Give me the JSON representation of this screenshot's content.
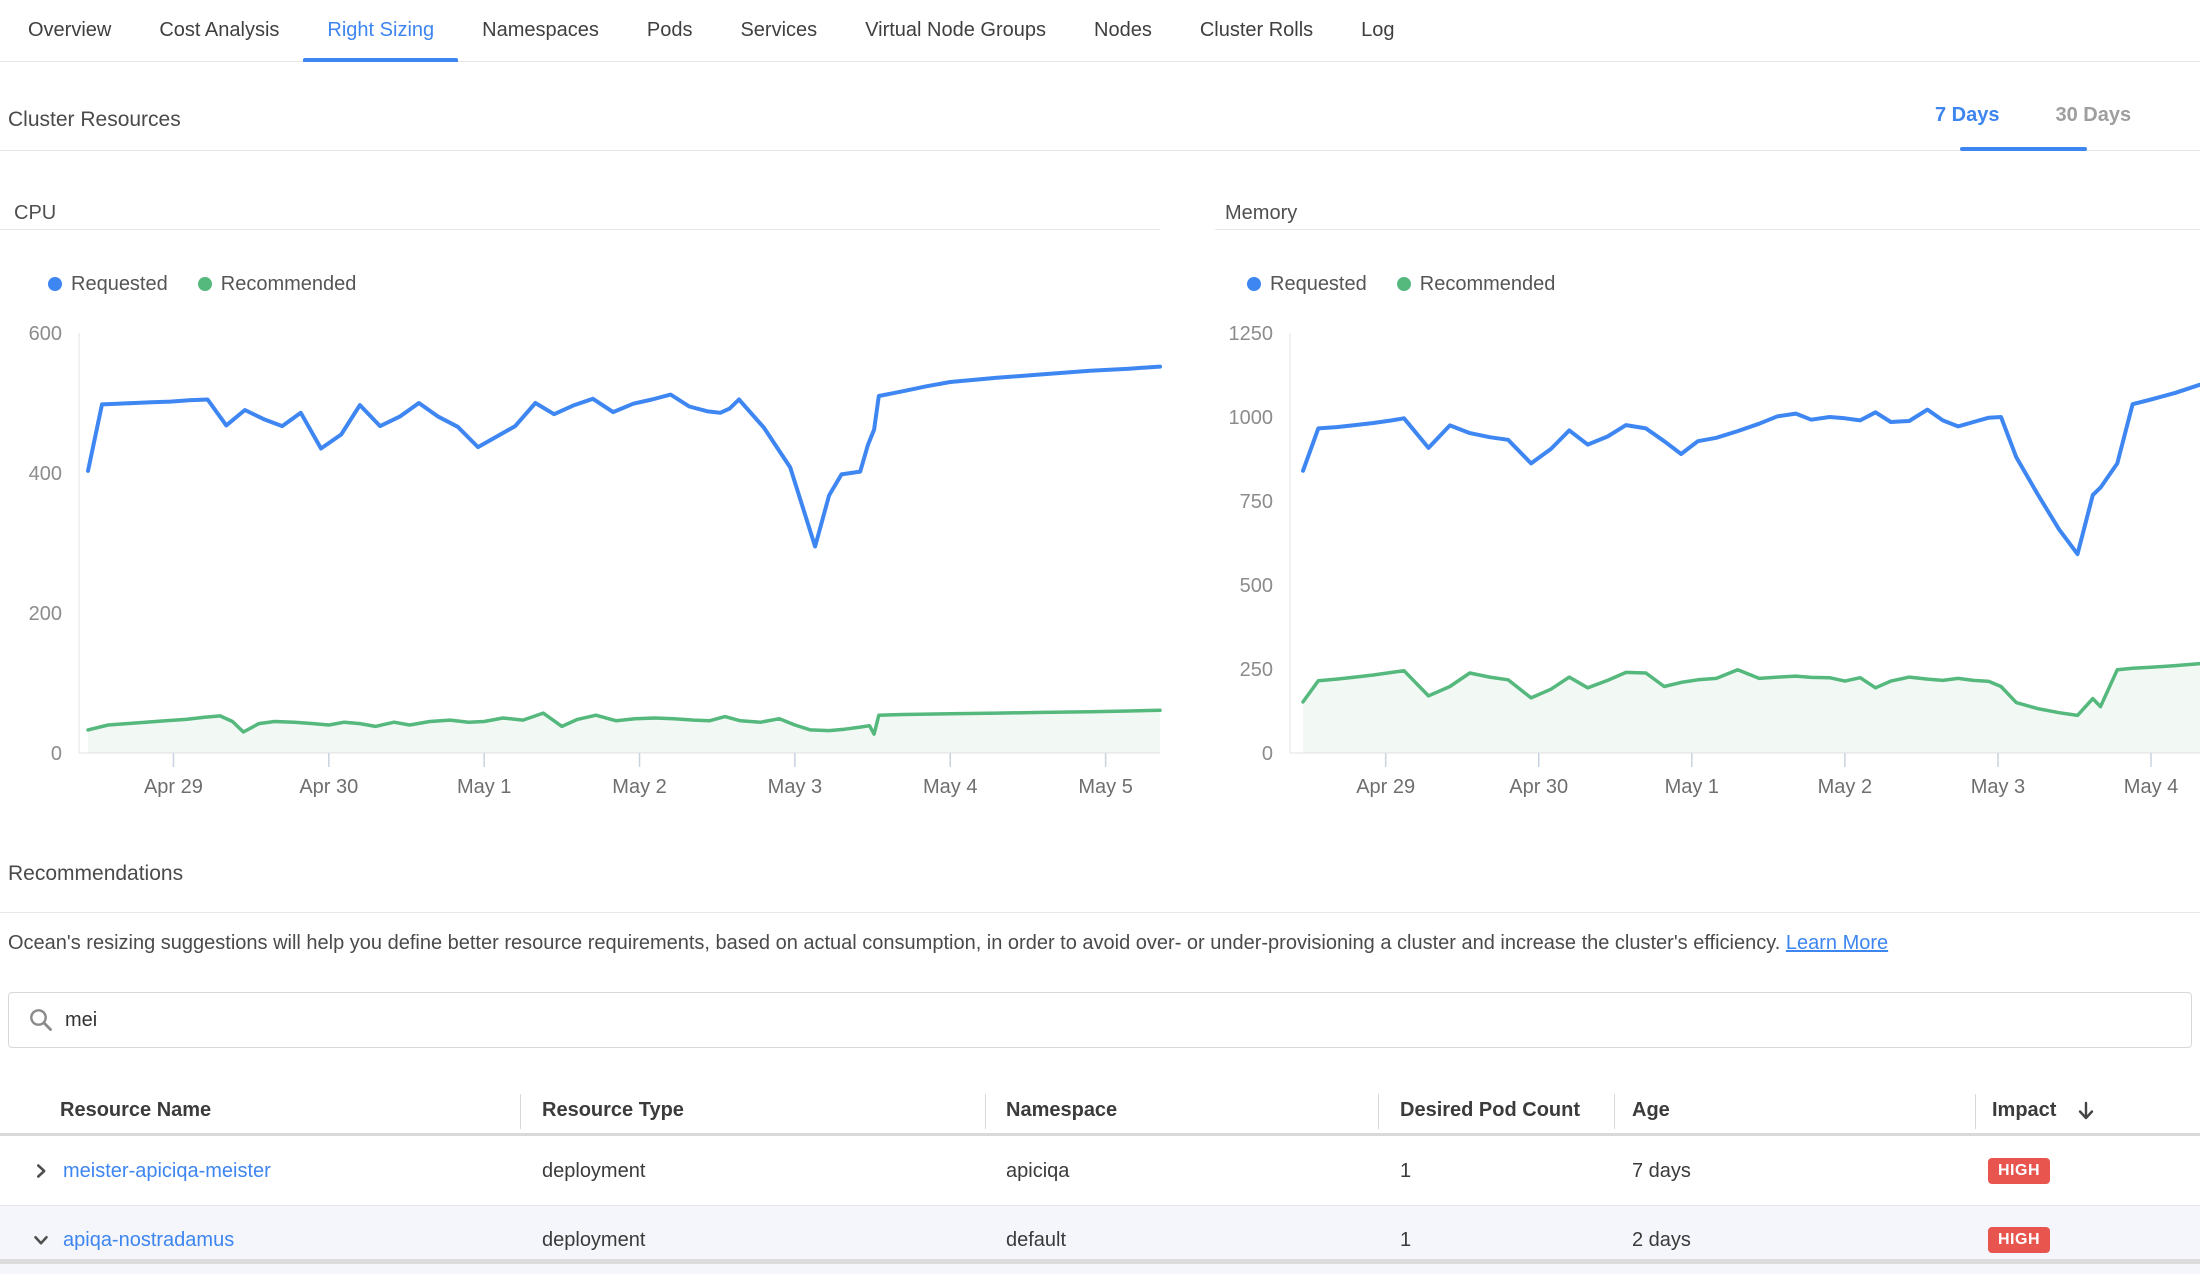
{
  "tabs": {
    "items": [
      "Overview",
      "Cost Analysis",
      "Right Sizing",
      "Namespaces",
      "Pods",
      "Services",
      "Virtual Node Groups",
      "Nodes",
      "Cluster Rolls",
      "Log"
    ],
    "active": "Right Sizing"
  },
  "cluster_resources": {
    "title": "Cluster Resources",
    "period_options": [
      {
        "label": "7 Days",
        "active": true
      },
      {
        "label": "30 Days",
        "active": false
      }
    ]
  },
  "chart_data": [
    {
      "type": "line",
      "title": "CPU",
      "legend_position": "top-left",
      "grid": false,
      "ylim": [
        0,
        600
      ],
      "y_ticks": [
        0,
        200,
        400,
        600
      ],
      "x_range": [
        -0.55,
        6.35
      ],
      "x_ticks": [
        {
          "label": "Apr 29",
          "x": 0
        },
        {
          "label": "Apr 30",
          "x": 1
        },
        {
          "label": "May 1",
          "x": 2
        },
        {
          "label": "May 2",
          "x": 3
        },
        {
          "label": "May 3",
          "x": 4
        },
        {
          "label": "May 4",
          "x": 5
        },
        {
          "label": "May 5",
          "x": 6
        }
      ],
      "series": [
        {
          "name": "Requested",
          "color": "#3e86f2",
          "fill": false,
          "points": [
            [
              -0.55,
              403
            ],
            [
              -0.46,
              498
            ],
            [
              -0.36,
              499
            ],
            [
              -0.25,
              500
            ],
            [
              -0.14,
              501
            ],
            [
              -0.02,
              502
            ],
            [
              0.1,
              504
            ],
            [
              0.22,
              505
            ],
            [
              0.34,
              468
            ],
            [
              0.46,
              490
            ],
            [
              0.58,
              477
            ],
            [
              0.7,
              467
            ],
            [
              0.82,
              486
            ],
            [
              0.95,
              435
            ],
            [
              1.08,
              455
            ],
            [
              1.2,
              497
            ],
            [
              1.33,
              467
            ],
            [
              1.46,
              481
            ],
            [
              1.58,
              500
            ],
            [
              1.7,
              481
            ],
            [
              1.83,
              466
            ],
            [
              1.96,
              437
            ],
            [
              2.08,
              452
            ],
            [
              2.2,
              467
            ],
            [
              2.33,
              500
            ],
            [
              2.45,
              484
            ],
            [
              2.58,
              497
            ],
            [
              2.7,
              506
            ],
            [
              2.83,
              487
            ],
            [
              2.96,
              499
            ],
            [
              3.08,
              505
            ],
            [
              3.2,
              512
            ],
            [
              3.32,
              495
            ],
            [
              3.44,
              488
            ],
            [
              3.52,
              486
            ],
            [
              3.58,
              492
            ],
            [
              3.64,
              505
            ],
            [
              3.8,
              465
            ],
            [
              3.97,
              408
            ],
            [
              4.13,
              295
            ],
            [
              4.22,
              368
            ],
            [
              4.3,
              398
            ],
            [
              4.36,
              400
            ],
            [
              4.42,
              402
            ],
            [
              4.47,
              440
            ],
            [
              4.51,
              462
            ],
            [
              4.54,
              510
            ],
            [
              4.7,
              517
            ],
            [
              4.85,
              524
            ],
            [
              5.0,
              530
            ],
            [
              5.3,
              536
            ],
            [
              5.6,
              541
            ],
            [
              5.9,
              546
            ],
            [
              6.15,
              549
            ],
            [
              6.35,
              552
            ]
          ]
        },
        {
          "name": "Recommended",
          "color": "#55b87d",
          "fill": true,
          "fill_color": "rgba(85,184,125,0.08)",
          "points": [
            [
              -0.55,
              33
            ],
            [
              -0.42,
              40
            ],
            [
              -0.3,
              42
            ],
            [
              -0.18,
              44
            ],
            [
              -0.05,
              46
            ],
            [
              0.08,
              48
            ],
            [
              0.2,
              51
            ],
            [
              0.3,
              53
            ],
            [
              0.38,
              45
            ],
            [
              0.45,
              30
            ],
            [
              0.55,
              42
            ],
            [
              0.65,
              45
            ],
            [
              0.78,
              44
            ],
            [
              0.9,
              42
            ],
            [
              1.0,
              40
            ],
            [
              1.1,
              44
            ],
            [
              1.2,
              42
            ],
            [
              1.3,
              38
            ],
            [
              1.42,
              44
            ],
            [
              1.52,
              40
            ],
            [
              1.65,
              45
            ],
            [
              1.78,
              47
            ],
            [
              1.9,
              44
            ],
            [
              2.0,
              45
            ],
            [
              2.12,
              50
            ],
            [
              2.25,
              47
            ],
            [
              2.38,
              57
            ],
            [
              2.5,
              38
            ],
            [
              2.6,
              48
            ],
            [
              2.72,
              54
            ],
            [
              2.85,
              46
            ],
            [
              2.97,
              49
            ],
            [
              3.1,
              50
            ],
            [
              3.22,
              49
            ],
            [
              3.35,
              47
            ],
            [
              3.45,
              46
            ],
            [
              3.55,
              52
            ],
            [
              3.65,
              46
            ],
            [
              3.78,
              44
            ],
            [
              3.9,
              49
            ],
            [
              4.0,
              40
            ],
            [
              4.1,
              33
            ],
            [
              4.22,
              32
            ],
            [
              4.32,
              34
            ],
            [
              4.42,
              37
            ],
            [
              4.48,
              39
            ],
            [
              4.51,
              27
            ],
            [
              4.54,
              54
            ],
            [
              4.7,
              55
            ],
            [
              5.0,
              56
            ],
            [
              5.3,
              57
            ],
            [
              5.6,
              58
            ],
            [
              5.9,
              59
            ],
            [
              6.15,
              60
            ],
            [
              6.35,
              61
            ]
          ]
        }
      ]
    },
    {
      "type": "line",
      "title": "Memory",
      "legend_position": "top-left",
      "grid": false,
      "ylim": [
        0,
        1250
      ],
      "y_ticks": [
        0,
        250,
        500,
        750,
        1000,
        1250
      ],
      "x_range": [
        -0.54,
        5.32
      ],
      "x_ticks": [
        {
          "label": "Apr 29",
          "x": 0
        },
        {
          "label": "Apr 30",
          "x": 1
        },
        {
          "label": "May 1",
          "x": 2
        },
        {
          "label": "May 2",
          "x": 3
        },
        {
          "label": "May 3",
          "x": 4
        },
        {
          "label": "May 4",
          "x": 5
        }
      ],
      "series": [
        {
          "name": "Requested",
          "color": "#3e86f2",
          "fill": false,
          "points": [
            [
              -0.54,
              840
            ],
            [
              -0.44,
              966
            ],
            [
              -0.32,
              970
            ],
            [
              -0.2,
              976
            ],
            [
              -0.08,
              982
            ],
            [
              0.04,
              990
            ],
            [
              0.12,
              996
            ],
            [
              0.28,
              908
            ],
            [
              0.42,
              975
            ],
            [
              0.55,
              952
            ],
            [
              0.68,
              940
            ],
            [
              0.8,
              932
            ],
            [
              0.95,
              862
            ],
            [
              1.08,
              905
            ],
            [
              1.2,
              960
            ],
            [
              1.32,
              918
            ],
            [
              1.45,
              942
            ],
            [
              1.57,
              976
            ],
            [
              1.7,
              966
            ],
            [
              1.82,
              928
            ],
            [
              1.93,
              890
            ],
            [
              2.04,
              928
            ],
            [
              2.16,
              938
            ],
            [
              2.3,
              958
            ],
            [
              2.44,
              980
            ],
            [
              2.56,
              1002
            ],
            [
              2.68,
              1010
            ],
            [
              2.78,
              992
            ],
            [
              2.9,
              1000
            ],
            [
              3.0,
              996
            ],
            [
              3.1,
              990
            ],
            [
              3.2,
              1014
            ],
            [
              3.3,
              985
            ],
            [
              3.42,
              988
            ],
            [
              3.54,
              1022
            ],
            [
              3.64,
              990
            ],
            [
              3.74,
              972
            ],
            [
              3.84,
              985
            ],
            [
              3.94,
              998
            ],
            [
              4.02,
              1000
            ],
            [
              4.12,
              880
            ],
            [
              4.26,
              770
            ],
            [
              4.4,
              665
            ],
            [
              4.52,
              592
            ],
            [
              4.62,
              768
            ],
            [
              4.67,
              790
            ],
            [
              4.78,
              862
            ],
            [
              4.88,
              1038
            ],
            [
              5.0,
              1052
            ],
            [
              5.16,
              1072
            ],
            [
              5.32,
              1096
            ]
          ]
        },
        {
          "name": "Recommended",
          "color": "#55b87d",
          "fill": true,
          "fill_color": "rgba(85,184,125,0.08)",
          "points": [
            [
              -0.54,
              152
            ],
            [
              -0.44,
              215
            ],
            [
              -0.32,
              220
            ],
            [
              -0.2,
              226
            ],
            [
              -0.08,
              232
            ],
            [
              0.04,
              240
            ],
            [
              0.12,
              245
            ],
            [
              0.28,
              170
            ],
            [
              0.42,
              198
            ],
            [
              0.55,
              238
            ],
            [
              0.68,
              226
            ],
            [
              0.8,
              218
            ],
            [
              0.95,
              164
            ],
            [
              1.08,
              190
            ],
            [
              1.2,
              226
            ],
            [
              1.32,
              194
            ],
            [
              1.45,
              216
            ],
            [
              1.57,
              240
            ],
            [
              1.7,
              238
            ],
            [
              1.82,
              198
            ],
            [
              1.93,
              210
            ],
            [
              2.04,
              218
            ],
            [
              2.16,
              222
            ],
            [
              2.3,
              248
            ],
            [
              2.44,
              222
            ],
            [
              2.56,
              226
            ],
            [
              2.68,
              229
            ],
            [
              2.78,
              225
            ],
            [
              2.9,
              224
            ],
            [
              3.0,
              214
            ],
            [
              3.1,
              224
            ],
            [
              3.2,
              194
            ],
            [
              3.3,
              214
            ],
            [
              3.42,
              226
            ],
            [
              3.54,
              220
            ],
            [
              3.64,
              216
            ],
            [
              3.74,
              222
            ],
            [
              3.84,
              216
            ],
            [
              3.94,
              213
            ],
            [
              4.02,
              198
            ],
            [
              4.12,
              150
            ],
            [
              4.26,
              132
            ],
            [
              4.4,
              120
            ],
            [
              4.52,
              112
            ],
            [
              4.62,
              162
            ],
            [
              4.67,
              138
            ],
            [
              4.78,
              248
            ],
            [
              4.88,
              252
            ],
            [
              5.0,
              255
            ],
            [
              5.16,
              260
            ],
            [
              5.32,
              266
            ]
          ]
        }
      ]
    }
  ],
  "recommendations": {
    "title": "Recommendations",
    "description": "Ocean's resizing suggestions will help you define better resource requirements, based on actual consumption, in order to avoid over- or under-provisioning a cluster and increase the cluster's efficiency.",
    "learn_more_label": "Learn More"
  },
  "search": {
    "value": "mei"
  },
  "table": {
    "columns": [
      {
        "label": "Resource Name",
        "sortable": false
      },
      {
        "label": "Resource Type",
        "sortable": false
      },
      {
        "label": "Namespace",
        "sortable": false
      },
      {
        "label": "Desired Pod Count",
        "sortable": false
      },
      {
        "label": "Age",
        "sortable": false
      },
      {
        "label": "Impact",
        "sortable": true,
        "sort": "desc"
      }
    ],
    "rows": [
      {
        "name": "meister-apiciqa-meister",
        "type": "deployment",
        "namespace": "apiciqa",
        "desired_pod_count": "1",
        "age": "7 days",
        "impact": "HIGH",
        "expanded": false
      },
      {
        "name": "apiqa-nostradamus",
        "type": "deployment",
        "namespace": "default",
        "desired_pod_count": "1",
        "age": "2 days",
        "impact": "HIGH",
        "expanded": true
      }
    ]
  },
  "colors": {
    "accent_blue": "#3d85f0",
    "inactive_gray": "#9e9e9e",
    "green": "#55b87d",
    "badge_red": "#e8554e",
    "row_highlight": "#f4f6fb",
    "axis_label": "#8c8c8c",
    "date_label": "#6e6e6e"
  }
}
